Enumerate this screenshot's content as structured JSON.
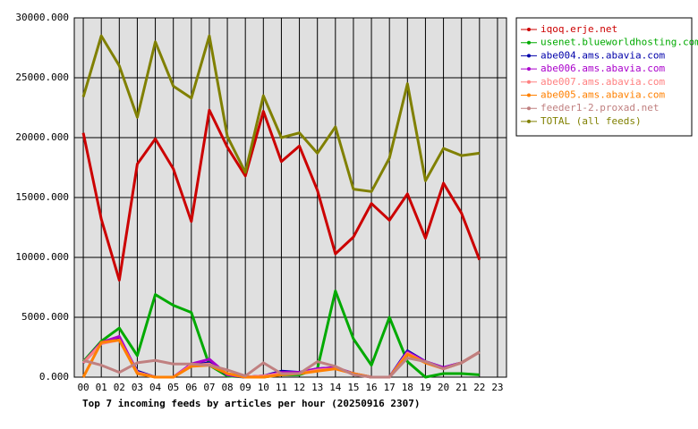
{
  "chart_data": {
    "type": "line",
    "title": "Top 7 incoming feeds by articles per hour (20250916 2307)",
    "categories": [
      "00",
      "01",
      "02",
      "03",
      "04",
      "05",
      "06",
      "07",
      "08",
      "09",
      "10",
      "11",
      "12",
      "13",
      "14",
      "15",
      "16",
      "17",
      "18",
      "19",
      "20",
      "21",
      "22",
      "23"
    ],
    "ylim": [
      0,
      30000
    ],
    "yticks": [
      {
        "value": 0,
        "label": "0.000"
      },
      {
        "value": 5000,
        "label": "5000.000"
      },
      {
        "value": 10000,
        "label": "10000.000"
      },
      {
        "value": 15000,
        "label": "15000.000"
      },
      {
        "value": 20000,
        "label": "20000.000"
      },
      {
        "value": 25000,
        "label": "25000.000"
      },
      {
        "value": 30000,
        "label": "30000.000"
      }
    ],
    "grid": true,
    "legend": "right",
    "series": [
      {
        "name": "iqoq.erje.net",
        "color": "#cc0000",
        "values": [
          20400,
          13200,
          8100,
          17800,
          19900,
          17400,
          13000,
          22300,
          19200,
          16800,
          22200,
          18000,
          19300,
          15600,
          10300,
          11700,
          14500,
          13100,
          15300,
          11600,
          16200,
          13700,
          9800,
          null
        ]
      },
      {
        "name": "usenet.blueworldhosting.com",
        "color": "#00aa00",
        "values": [
          1300,
          3000,
          4100,
          1800,
          6900,
          6000,
          5400,
          1000,
          100,
          0,
          0,
          200,
          200,
          700,
          7200,
          3200,
          1000,
          5000,
          1300,
          0,
          300,
          300,
          200,
          null
        ]
      },
      {
        "name": "abe004.ams.abavia.com",
        "color": "#0000aa",
        "values": [
          1200,
          2800,
          3200,
          500,
          0,
          0,
          1000,
          1200,
          200,
          0,
          100,
          500,
          400,
          700,
          800,
          300,
          0,
          0,
          2200,
          1300,
          800,
          1200,
          2100,
          null
        ]
      },
      {
        "name": "abe006.ams.abavia.com",
        "color": "#aa00cc",
        "values": [
          1200,
          2900,
          3400,
          400,
          0,
          0,
          1100,
          1500,
          200,
          0,
          100,
          400,
          400,
          700,
          800,
          300,
          0,
          0,
          2100,
          1300,
          800,
          1200,
          2100,
          null
        ]
      },
      {
        "name": "abe007.ams.abavia.com",
        "color": "#ff8080",
        "values": [
          1200,
          2800,
          3100,
          400,
          0,
          0,
          1000,
          1100,
          300,
          0,
          100,
          300,
          300,
          600,
          700,
          300,
          0,
          0,
          2000,
          1200,
          700,
          1200,
          2100,
          null
        ]
      },
      {
        "name": "abe005.ams.abavia.com",
        "color": "#ff8000",
        "values": [
          0,
          2900,
          3100,
          300,
          0,
          0,
          900,
          1000,
          300,
          0,
          0,
          200,
          300,
          500,
          700,
          300,
          0,
          0,
          1900,
          1200,
          700,
          1200,
          2100,
          null
        ]
      },
      {
        "name": "feeder1-2.proxad.net",
        "color": "#c08080",
        "values": [
          1400,
          1000,
          400,
          1200,
          1400,
          1100,
          1100,
          1000,
          600,
          100,
          1200,
          300,
          300,
          1300,
          900,
          200,
          0,
          0,
          1600,
          1300,
          700,
          1200,
          2100,
          null
        ]
      },
      {
        "name": "TOTAL (all feeds)",
        "color": "#808000",
        "values": [
          23400,
          28500,
          26000,
          21700,
          28000,
          24300,
          23300,
          28500,
          20100,
          17100,
          23500,
          20000,
          20400,
          18700,
          20900,
          15700,
          15500,
          18300,
          24500,
          16400,
          19100,
          18500,
          18700,
          null
        ]
      }
    ]
  }
}
